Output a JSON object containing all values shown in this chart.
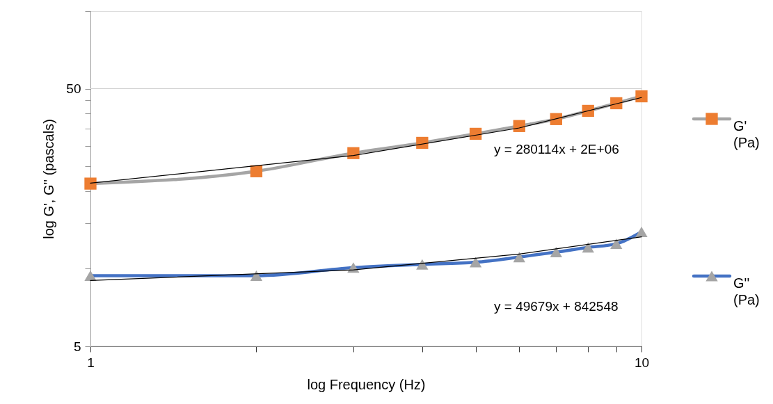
{
  "chart_data": {
    "type": "line",
    "xlabel": "log Frequency (Hz)",
    "ylabel": "log G', G'' (pascals)",
    "log": "xy",
    "xlim": [
      1,
      10
    ],
    "ylim": [
      5,
      100
    ],
    "xticks": [
      1,
      {
        "value": 2,
        "label": null
      },
      {
        "value": 3,
        "label": null
      },
      {
        "value": 4,
        "label": null
      },
      {
        "value": 5,
        "label": null
      },
      {
        "value": 6,
        "label": null
      },
      {
        "value": 7,
        "label": null
      },
      {
        "value": 8,
        "label": null
      },
      {
        "value": 9,
        "label": null
      },
      10
    ],
    "yticks": [
      5,
      {
        "value": 10,
        "label": null
      },
      {
        "value": 15,
        "label": null
      },
      {
        "value": 20,
        "label": null
      },
      {
        "value": 25,
        "label": null
      },
      {
        "value": 30,
        "label": null
      },
      {
        "value": 35,
        "label": null
      },
      {
        "value": 40,
        "label": null
      },
      {
        "value": 45,
        "label": null
      },
      50,
      {
        "value": 100,
        "label": null
      }
    ],
    "grid": "y",
    "legend": "right",
    "x": [
      1,
      2,
      3,
      4,
      5,
      6,
      7,
      8,
      9,
      10
    ],
    "series": [
      {
        "name": "G' (Pa)",
        "color": "#a5a5a5",
        "colors": [
          "#ed7d31",
          "#ed7d31",
          "#ed7d31",
          "#ed7d31",
          "#ed7d31",
          "#ed7d31",
          "#ed7d31",
          "#ed7d31",
          "#ed7d31",
          "#ed7d31"
        ],
        "marker": "square",
        "values": [
          21.4,
          23.9,
          28.1,
          30.8,
          33.4,
          35.8,
          38.1,
          41.0,
          43.9,
          46.7
        ]
      },
      {
        "name": "G'' (Pa)",
        "color": "#4472c4",
        "colors": [
          "#a5a5a5",
          "#a5a5a5",
          "#a5a5a5",
          "#a5a5a5",
          "#a5a5a5",
          "#a5a5a5",
          "#a5a5a5",
          "#a5a5a5",
          "#a5a5a5",
          "#a5a5a5"
        ],
        "marker": "triangle",
        "values": [
          9.4,
          9.4,
          10.1,
          10.4,
          10.6,
          11.1,
          11.6,
          12.1,
          12.5,
          13.9
        ]
      },
      {
        "type": "line",
        "color": "#000000",
        "marker": "none",
        "x": [
          1,
          3,
          6,
          10
        ],
        "values": [
          21.5,
          27.5,
          35.2,
          46.2
        ]
      },
      {
        "type": "line",
        "color": "#000000",
        "marker": "none",
        "x": [
          1,
          3,
          6,
          10
        ],
        "values": [
          9.0,
          9.9,
          11.4,
          13.3
        ]
      }
    ],
    "annotations": [
      "y = 280114x + 2E+06",
      "y = 49679x + 842548"
    ]
  }
}
